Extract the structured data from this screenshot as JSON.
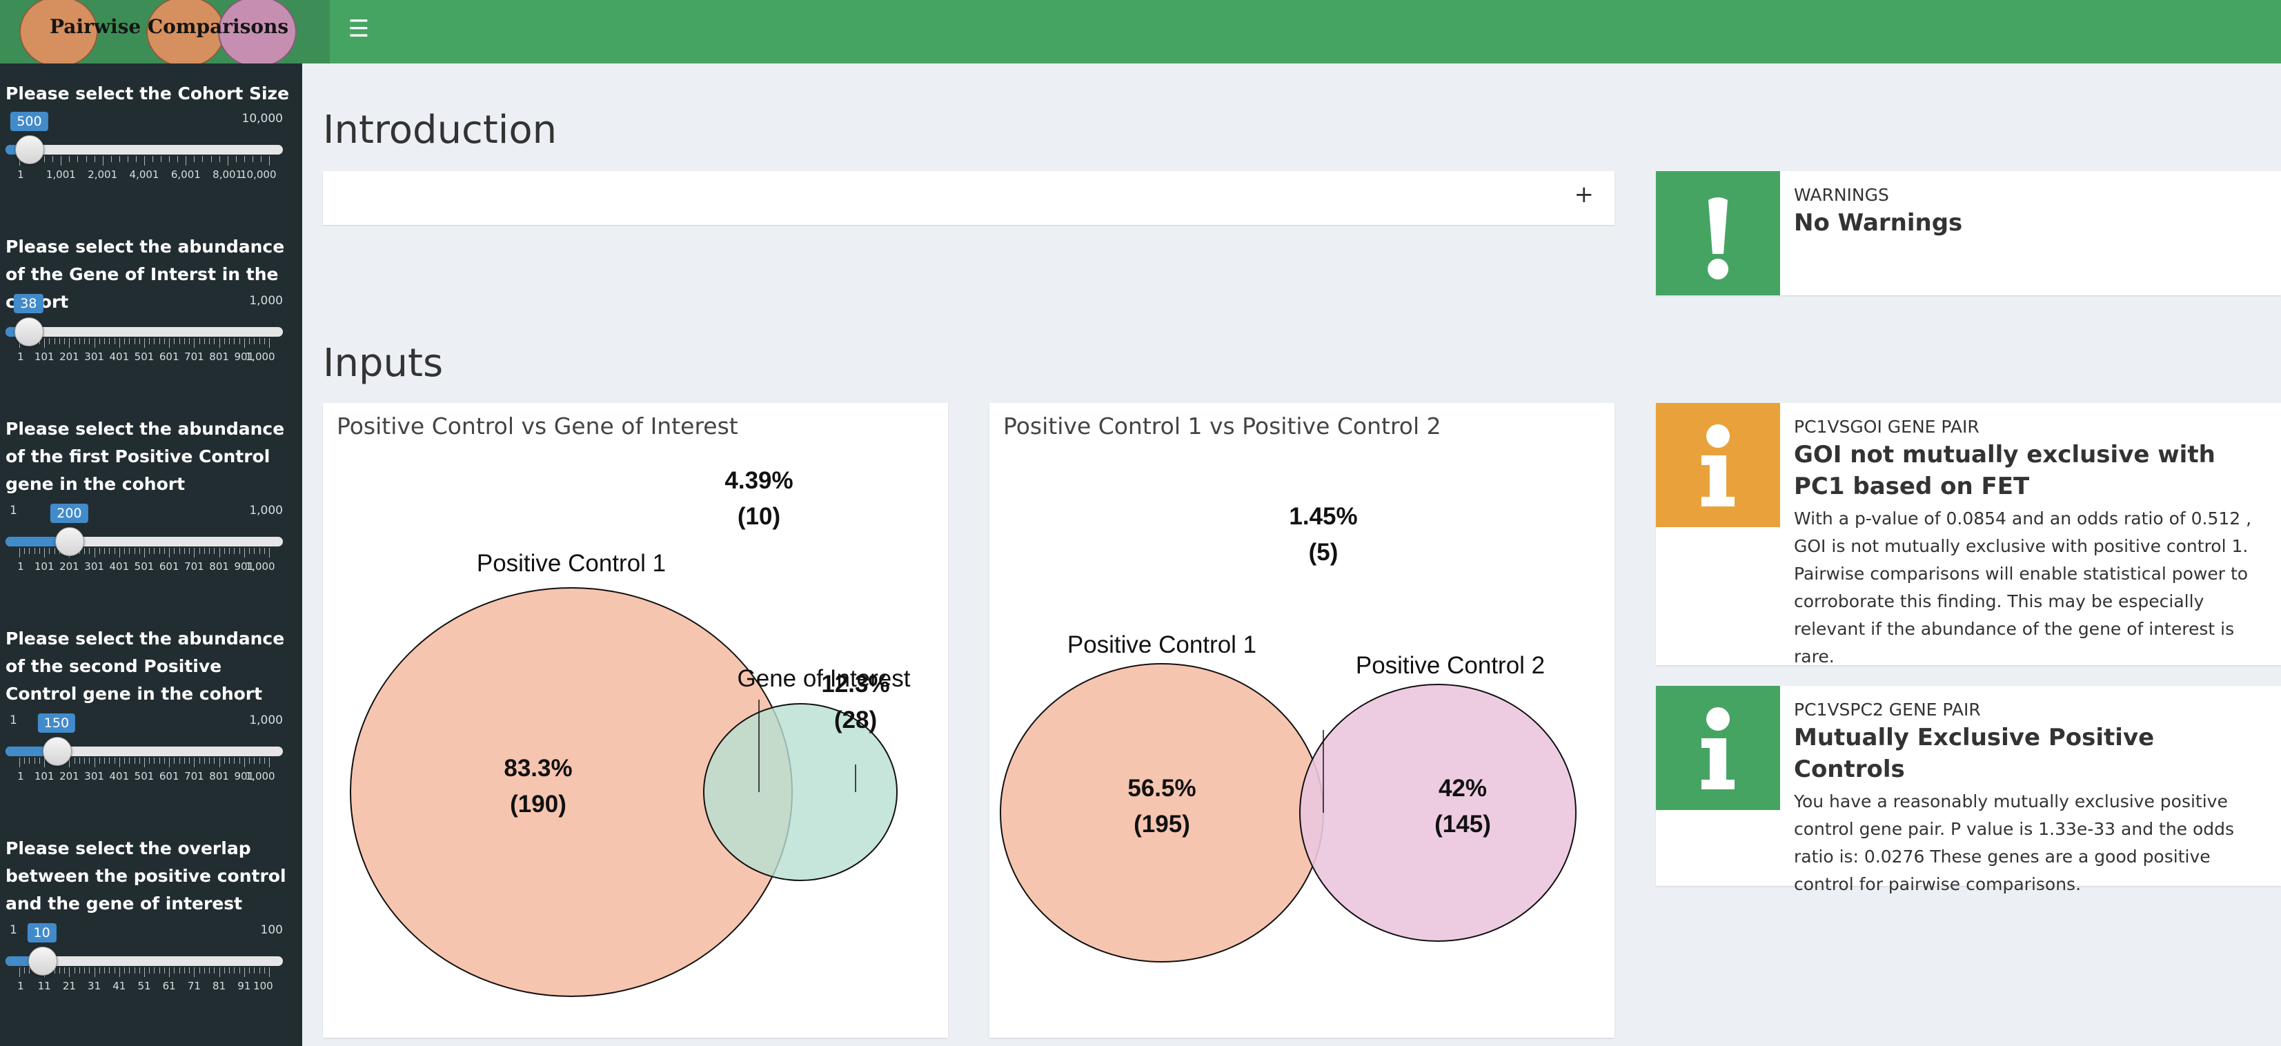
{
  "app": {
    "title": "Pairwise Comparisons",
    "menu_icon": "hamburger-menu-icon",
    "colors": {
      "header": "#46a463",
      "sidebar": "#222d32",
      "body": "#ecf0f5",
      "slider": "#428bca"
    }
  },
  "sidebar": {
    "sliders": [
      {
        "label": "Please select the Cohort Size",
        "value": "500",
        "min_label": "",
        "max_label": "10,000",
        "fraction": 0.04,
        "ticks": [
          "1",
          "1,001",
          "2,001",
          "4,001",
          "6,001",
          "8,001",
          "10,000"
        ]
      },
      {
        "label": "Please select the abundance of the Gene of Interst in the cohort",
        "value": "38",
        "min_label": "",
        "max_label": "1,000",
        "fraction": 0.037,
        "ticks": [
          "1",
          "101",
          "201",
          "301",
          "401",
          "501",
          "601",
          "701",
          "801",
          "901",
          "1,000"
        ]
      },
      {
        "label": "Please select the abundance of the first Positive Control gene in the cohort",
        "value": "200",
        "min_label": "1",
        "max_label": "1,000",
        "fraction": 0.2,
        "ticks": [
          "1",
          "101",
          "201",
          "301",
          "401",
          "501",
          "601",
          "701",
          "801",
          "901",
          "1,000"
        ]
      },
      {
        "label": "Please select the abundance of the second Positive Control gene in the cohort",
        "value": "150",
        "min_label": "1",
        "max_label": "1,000",
        "fraction": 0.149,
        "ticks": [
          "1",
          "101",
          "201",
          "301",
          "401",
          "501",
          "601",
          "701",
          "801",
          "901",
          "1,000"
        ]
      },
      {
        "label": "Please select the overlap between the positive control and the gene of interest",
        "value": "10",
        "min_label": "1",
        "max_label": "100",
        "fraction": 0.09,
        "ticks": [
          "1",
          "11",
          "21",
          "31",
          "41",
          "51",
          "61",
          "71",
          "81",
          "91",
          "100"
        ]
      }
    ]
  },
  "main": {
    "introduction": {
      "title": "Introduction",
      "expand_icon": "plus-icon",
      "expand_label": "+"
    },
    "inputs": {
      "title": "Inputs"
    },
    "venn1": {
      "title": "Positive Control vs Gene of Interest",
      "set_a": {
        "name": "Positive Control 1",
        "pct": "83.3%",
        "count": "(190)",
        "color": "#f6c5b0"
      },
      "set_b": {
        "name": "Gene of Interest",
        "pct": "12.3%",
        "count": "(28)",
        "color": "#b8dfd2"
      },
      "overlap": {
        "pct": "4.39%",
        "count": "(10)"
      }
    },
    "venn2": {
      "title": "Positive Control 1 vs Positive Control 2",
      "set_a": {
        "name": "Positive Control 1",
        "pct": "56.5%",
        "count": "(195)",
        "color": "#f6c5b0"
      },
      "set_b": {
        "name": "Positive Control 2",
        "pct": "42%",
        "count": "(145)",
        "color": "#ebc7df"
      },
      "overlap": {
        "pct": "1.45%",
        "count": "(5)"
      }
    }
  },
  "info_boxes": [
    {
      "subtitle": "WARNINGS",
      "heading": "No Warnings",
      "text": "",
      "icon": "exclamation-icon",
      "color": "#46a463"
    },
    {
      "subtitle": "PC1vsGOI GENE PAIR",
      "heading": "GOI not mutually exclusive with PC1 based on FET",
      "text": "With a p-value of 0.0854 and an odds ratio of 0.512 , GOI is not mutually exclusive with positive control 1. Pairwise comparisons will enable statistical power to corroborate this finding. This may be especially relevant if the abundance of the gene of interest is rare.",
      "icon": "info-icon",
      "color": "#e9a23b"
    },
    {
      "subtitle": "PC1vsPC2 GENE PAIR",
      "heading": "Mutually Exclusive Positive Controls",
      "text": "You have a reasonably mutually exclusive positive control gene pair. P value is 1.33e-33 and the odds ratio is: 0.0276 These genes are a good positive control for pairwise comparisons.",
      "icon": "info-icon",
      "color": "#46a463"
    }
  ]
}
